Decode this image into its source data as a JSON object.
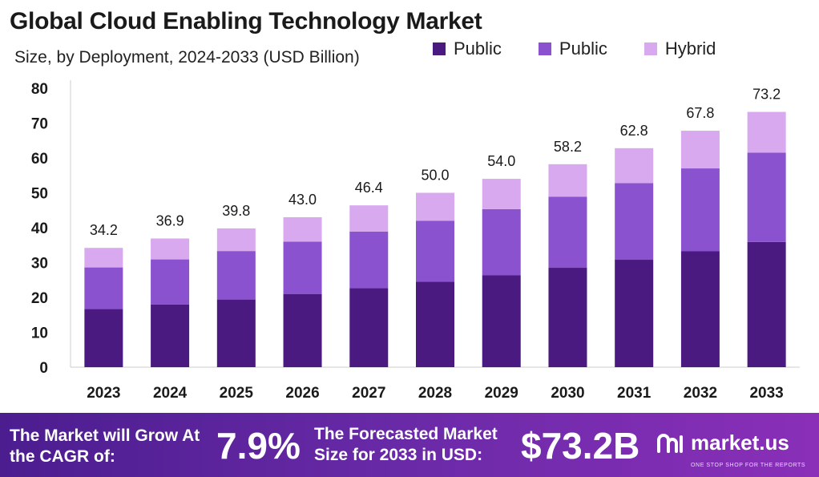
{
  "header": {
    "title": "Global Cloud Enabling Technology Market",
    "subtitle": "Size, by Deployment, 2024-2033 (USD Billion)"
  },
  "legend": {
    "items": [
      {
        "label": "Public",
        "color": "#4b1a80"
      },
      {
        "label": "Public",
        "color": "#8a52cf"
      },
      {
        "label": "Hybrid",
        "color": "#d8a9ef"
      }
    ]
  },
  "chart_data": {
    "type": "bar",
    "stacked": true,
    "categories": [
      "2023",
      "2024",
      "2025",
      "2026",
      "2027",
      "2028",
      "2029",
      "2030",
      "2031",
      "2032",
      "2033"
    ],
    "series": [
      {
        "name": "Public",
        "color": "#4b1a80",
        "values": [
          16.7,
          18.0,
          19.4,
          21.0,
          22.7,
          24.5,
          26.4,
          28.5,
          30.8,
          33.3,
          35.9
        ]
      },
      {
        "name": "Public",
        "color": "#8a52cf",
        "values": [
          11.9,
          12.9,
          13.9,
          15.0,
          16.2,
          17.5,
          18.9,
          20.4,
          22.0,
          23.7,
          25.6
        ]
      },
      {
        "name": "Hybrid",
        "color": "#d8a9ef",
        "values": [
          5.6,
          6.0,
          6.5,
          7.0,
          7.5,
          8.0,
          8.7,
          9.3,
          10.0,
          10.8,
          11.7
        ]
      }
    ],
    "totals": [
      "34.2",
      "36.9",
      "39.8",
      "43.0",
      "46.4",
      "50.0",
      "54.0",
      "58.2",
      "62.8",
      "67.8",
      "73.2"
    ],
    "ylim": [
      0,
      80
    ],
    "yticks": [
      0,
      10,
      20,
      30,
      40,
      50,
      60,
      70,
      80
    ],
    "grid": false,
    "legend_position": "top-right"
  },
  "footer": {
    "cagr_label": "The Market will Grow At the CAGR of:",
    "cagr_value": "7.9%",
    "forecast_label": "The Forecasted Market Size for 2033 in USD:",
    "forecast_value": "$73.2B",
    "brand": "market.us",
    "tagline": "ONE STOP SHOP FOR THE REPORTS"
  }
}
